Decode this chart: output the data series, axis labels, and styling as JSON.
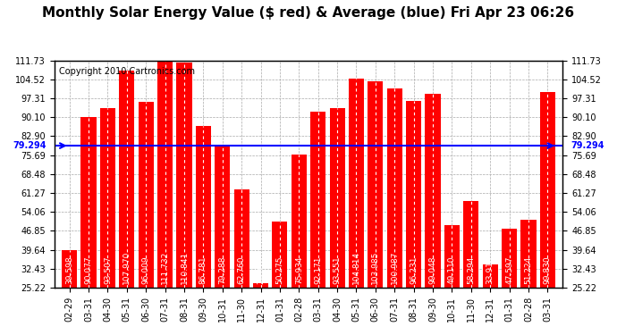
{
  "title": "Monthly Solar Energy Value ($ red) & Average (blue) Fri Apr 23 06:26",
  "copyright": "Copyright 2010 Cartronics.com",
  "categories": [
    "02-29",
    "03-31",
    "04-30",
    "05-31",
    "06-30",
    "07-31",
    "08-31",
    "09-30",
    "10-31",
    "11-30",
    "12-31",
    "01-31",
    "02-28",
    "03-31",
    "04-30",
    "05-31",
    "06-30",
    "07-31",
    "08-31",
    "09-30",
    "10-31",
    "11-30",
    "12-31",
    "01-31",
    "02-28",
    "03-31"
  ],
  "values": [
    39.598,
    90.077,
    93.507,
    107.97,
    96.009,
    111.732,
    110.841,
    86.781,
    79.288,
    62.76,
    26.918,
    50.275,
    75.934,
    92.171,
    93.551,
    104.814,
    103.985,
    100.987,
    96.231,
    99.048,
    49.11,
    58.294,
    33.91,
    47.597,
    51.224,
    99.83
  ],
  "average": 79.294,
  "ylim_min": 25.22,
  "ylim_max": 111.73,
  "yticks": [
    25.22,
    32.43,
    39.64,
    46.85,
    54.06,
    61.27,
    68.48,
    75.69,
    82.9,
    90.1,
    97.31,
    104.52,
    111.73
  ],
  "bar_color": "#ff0000",
  "avg_line_color": "#0000ff",
  "bg_color": "#ffffff",
  "plot_bg_color": "#ffffff",
  "grid_color": "#aaaaaa",
  "title_fontsize": 11,
  "copyright_fontsize": 7,
  "value_fontsize": 6.5,
  "tick_fontsize": 7,
  "avg_label": "79.294"
}
